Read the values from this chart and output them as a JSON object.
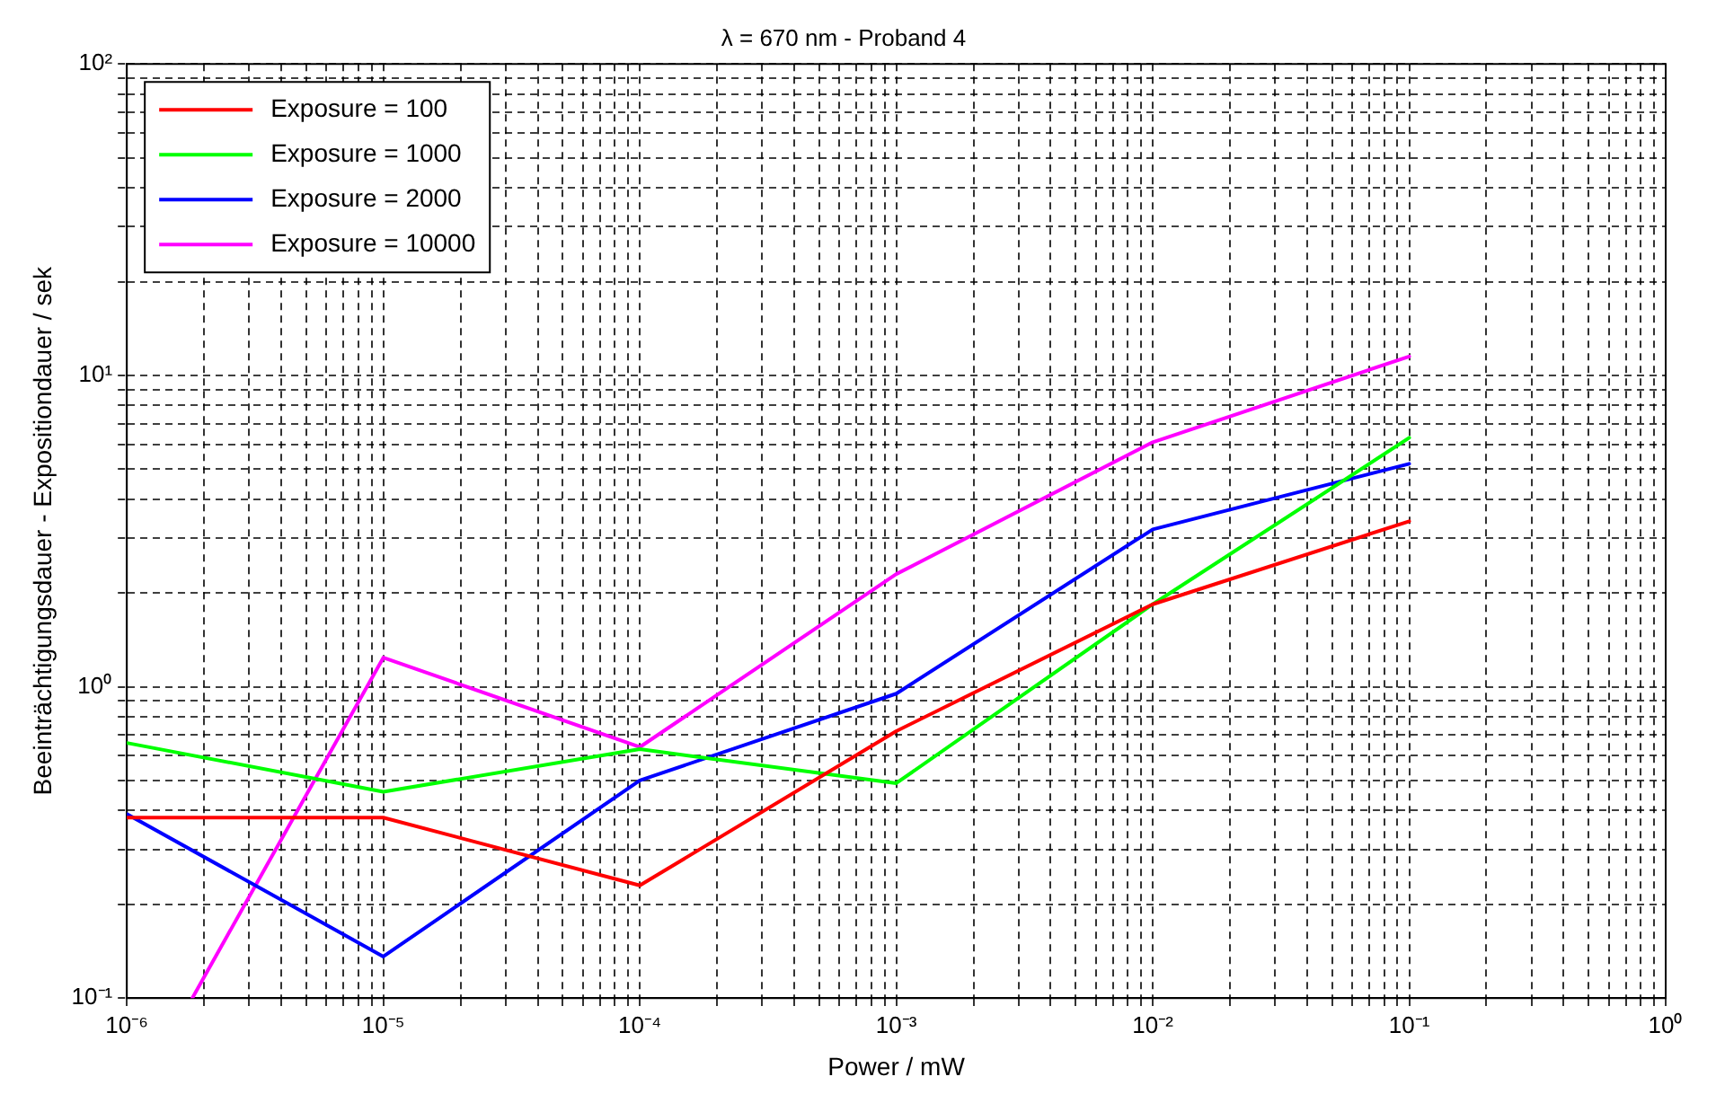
{
  "chart_data": {
    "type": "line",
    "title": "λ = 670 nm - Proband 4",
    "xlabel": "Power / mW",
    "ylabel": "Beeinträchtigungsdauer - Expositiondauer / sek",
    "x": [
      1e-06,
      1e-05,
      0.0001,
      0.001,
      0.01,
      0.1
    ],
    "series": [
      {
        "name": "Exposure = 100",
        "color": "#ff0000",
        "values": [
          0.38,
          0.38,
          0.23,
          0.72,
          1.84,
          3.4
        ]
      },
      {
        "name": "Exposure = 1000",
        "color": "#00ff00",
        "values": [
          0.66,
          0.46,
          0.63,
          0.49,
          1.84,
          6.3
        ]
      },
      {
        "name": "Exposure = 2000",
        "color": "#0000ff",
        "values": [
          0.39,
          0.136,
          0.5,
          0.95,
          3.2,
          5.2
        ]
      },
      {
        "name": "Exposure = 10000",
        "color": "#ff00ff",
        "x": [
          1.8e-06,
          1e-05,
          0.0001,
          0.001,
          0.01,
          0.1
        ],
        "values": [
          0.1,
          1.24,
          0.64,
          2.3,
          6.1,
          11.5
        ]
      }
    ],
    "log": "xy",
    "xlim": [
      1e-06,
      1
    ],
    "ylim": [
      0.1,
      100
    ],
    "xticks": [
      {
        "value": 1e-06,
        "label": "10⁻⁶"
      },
      {
        "value": 1e-05,
        "label": "10⁻⁵"
      },
      {
        "value": 0.0001,
        "label": "10⁻⁴"
      },
      {
        "value": 0.001,
        "label": "10⁻³"
      },
      {
        "value": 0.01,
        "label": "10⁻²"
      },
      {
        "value": 0.1,
        "label": "10⁻¹"
      },
      {
        "value": 1,
        "label": "10⁰"
      }
    ],
    "yticks": [
      {
        "value": 0.1,
        "label": "10⁻¹"
      },
      {
        "value": 1,
        "label": "10⁰"
      },
      {
        "value": 10,
        "label": "10¹"
      },
      {
        "value": 100,
        "label": "10²"
      }
    ],
    "grid": true,
    "legend": "top left",
    "marker": "none",
    "line_style": "solid"
  }
}
